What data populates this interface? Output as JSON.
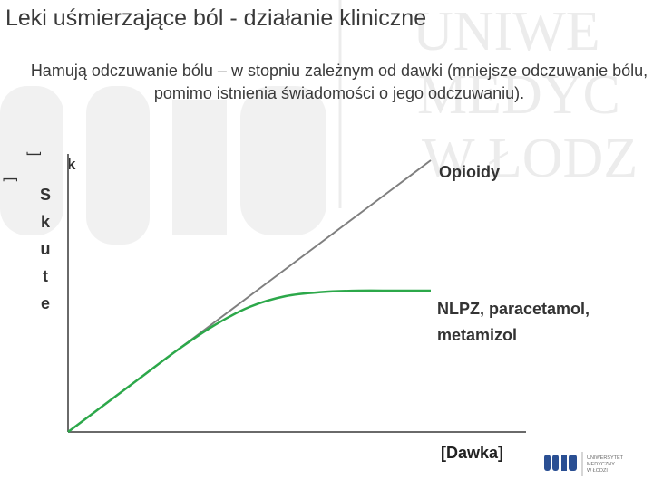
{
  "slide": {
    "title": "Leki uśmierzające ból - działanie kliniczne",
    "subtitle": "Hamują odczuwanie bólu – w stopniu zależnym od dawki (mniejsze odczuwanie bólu, pomimo istnienia świadomości o jego odczuwaniu).",
    "logo_text": [
      "UNIWERSYTET",
      "MEDYCZNY",
      "W ŁODZI"
    ]
  },
  "chart_data": {
    "type": "line",
    "title": "",
    "xlabel": "[Dawka]",
    "ylabel_letters": [
      "S",
      "k",
      "u",
      "t",
      "e"
    ],
    "ylabel_k": "k",
    "ylabel_brackets": [
      "[",
      "]"
    ],
    "x": [
      0,
      1,
      2,
      3,
      4,
      5,
      6,
      7,
      8,
      9,
      10
    ],
    "series": [
      {
        "name": "Opioidy",
        "color": "#7f7f7f",
        "values": [
          0,
          1,
          2,
          3,
          4,
          5,
          6,
          7,
          8,
          9,
          10
        ]
      },
      {
        "name": "NLPZ, paracetamol, metamizol",
        "name_lines": [
          "NLPZ, paracetamol,",
          "metamizol"
        ],
        "color": "#2ca84a",
        "values": [
          0,
          1,
          2,
          3,
          3.9,
          4.6,
          5.0,
          5.15,
          5.2,
          5.2,
          5.2
        ]
      }
    ],
    "xlim": [
      0,
      10
    ],
    "ylim": [
      0,
      10
    ],
    "grid": false,
    "legend": "inline"
  }
}
